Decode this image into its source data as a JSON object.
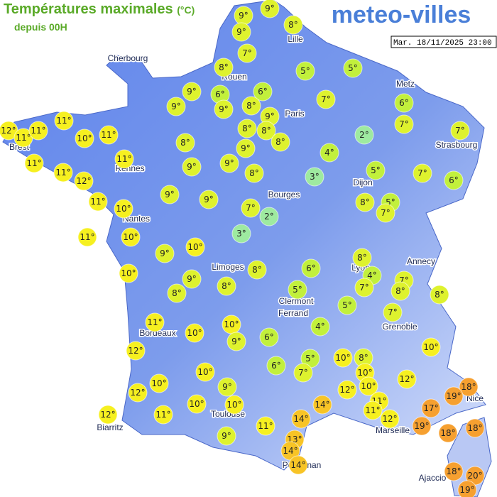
{
  "header": {
    "title": "Températures maximales",
    "unit": "(°C)",
    "subtitle": "depuis 00H",
    "logo": "meteo-villes",
    "date": "Mar. 18/11/2025 23:00"
  },
  "cities": [
    "Cherbourg",
    "Lille",
    "Rouen",
    "Paris",
    "Metz",
    "Strasbourg",
    "Brest",
    "Rennes",
    "Dijon",
    "Bourges",
    "Nantes",
    "Limoges",
    "Annecy",
    "Lyon",
    "Clermont",
    "Ferrand",
    "Grenoble",
    "Bordeaux",
    "Toulouse",
    "Biarritz",
    "Marseille",
    "Nice",
    "Perpignan",
    "Ajaccio"
  ],
  "markers": [
    {
      "value": 9,
      "label": "9°"
    },
    {
      "value": 9,
      "label": "9°"
    },
    {
      "value": 9,
      "label": "9°"
    },
    {
      "value": 8,
      "label": "8°"
    },
    {
      "value": 7,
      "label": "7°"
    },
    {
      "value": 8,
      "label": "8°"
    },
    {
      "value": 5,
      "label": "5°"
    },
    {
      "value": 5,
      "label": "5°"
    },
    {
      "value": 6,
      "label": "6°"
    },
    {
      "value": 9,
      "label": "9°"
    },
    {
      "value": 6,
      "label": "6°"
    },
    {
      "value": 9,
      "label": "9°"
    },
    {
      "value": 9,
      "label": "9°"
    },
    {
      "value": 8,
      "label": "8°"
    },
    {
      "value": 9,
      "label": "9°"
    },
    {
      "value": 7,
      "label": "7°"
    },
    {
      "value": 6,
      "label": "6°"
    },
    {
      "value": 7,
      "label": "7°"
    },
    {
      "value": 7,
      "label": "7°"
    },
    {
      "value": 2,
      "label": "2°"
    },
    {
      "value": 8,
      "label": "8°"
    },
    {
      "value": 8,
      "label": "8°"
    },
    {
      "value": 8,
      "label": "8°"
    },
    {
      "value": 9,
      "label": "9°"
    },
    {
      "value": 8,
      "label": "8°"
    },
    {
      "value": 11,
      "label": "11°"
    },
    {
      "value": 12,
      "label": "12°"
    },
    {
      "value": 11,
      "label": "11°"
    },
    {
      "value": 11,
      "label": "11°"
    },
    {
      "value": 10,
      "label": "10°"
    },
    {
      "value": 11,
      "label": "11°"
    },
    {
      "value": 11,
      "label": "11°"
    },
    {
      "value": 11,
      "label": "11°"
    },
    {
      "value": 11,
      "label": "11°"
    },
    {
      "value": 12,
      "label": "12°"
    },
    {
      "value": 9,
      "label": "9°"
    },
    {
      "value": 9,
      "label": "9°"
    },
    {
      "value": 8,
      "label": "8°"
    },
    {
      "value": 4,
      "label": "4°"
    },
    {
      "value": 3,
      "label": "3°"
    },
    {
      "value": 5,
      "label": "5°"
    },
    {
      "value": 7,
      "label": "7°"
    },
    {
      "value": 6,
      "label": "6°"
    },
    {
      "value": 9,
      "label": "9°"
    },
    {
      "value": 9,
      "label": "9°"
    },
    {
      "value": 11,
      "label": "11°"
    },
    {
      "value": 10,
      "label": "10°"
    },
    {
      "value": 7,
      "label": "7°"
    },
    {
      "value": 2,
      "label": "2°"
    },
    {
      "value": 8,
      "label": "8°"
    },
    {
      "value": 5,
      "label": "5°"
    },
    {
      "value": 7,
      "label": "7°"
    },
    {
      "value": 11,
      "label": "11°"
    },
    {
      "value": 10,
      "label": "10°"
    },
    {
      "value": 3,
      "label": "3°"
    },
    {
      "value": 9,
      "label": "9°"
    },
    {
      "value": 10,
      "label": "10°"
    },
    {
      "value": 10,
      "label": "10°"
    },
    {
      "value": 8,
      "label": "8°"
    },
    {
      "value": 4,
      "label": "4°"
    },
    {
      "value": 6,
      "label": "6°"
    },
    {
      "value": 8,
      "label": "8°"
    },
    {
      "value": 9,
      "label": "9°"
    },
    {
      "value": 8,
      "label": "8°"
    },
    {
      "value": 8,
      "label": "8°"
    },
    {
      "value": 7,
      "label": "7°"
    },
    {
      "value": 8,
      "label": "8°"
    },
    {
      "value": 7,
      "label": "7°"
    },
    {
      "value": 8,
      "label": "8°"
    },
    {
      "value": 5,
      "label": "5°"
    },
    {
      "value": 5,
      "label": "5°"
    },
    {
      "value": 7,
      "label": "7°"
    },
    {
      "value": 11,
      "label": "11°"
    },
    {
      "value": 10,
      "label": "10°"
    },
    {
      "value": 10,
      "label": "10°"
    },
    {
      "value": 9,
      "label": "9°"
    },
    {
      "value": 6,
      "label": "6°"
    },
    {
      "value": 4,
      "label": "4°"
    },
    {
      "value": 12,
      "label": "12°"
    },
    {
      "value": 10,
      "label": "10°"
    },
    {
      "value": 5,
      "label": "5°"
    },
    {
      "value": 7,
      "label": "7°"
    },
    {
      "value": 6,
      "label": "6°"
    },
    {
      "value": 10,
      "label": "10°"
    },
    {
      "value": 8,
      "label": "8°"
    },
    {
      "value": 10,
      "label": "10°"
    },
    {
      "value": 10,
      "label": "10°"
    },
    {
      "value": 10,
      "label": "10°"
    },
    {
      "value": 9,
      "label": "9°"
    },
    {
      "value": 12,
      "label": "12°"
    },
    {
      "value": 12,
      "label": "12°"
    },
    {
      "value": 12,
      "label": "12°"
    },
    {
      "value": 10,
      "label": "10°"
    },
    {
      "value": 14,
      "label": "14°"
    },
    {
      "value": 11,
      "label": "11°"
    },
    {
      "value": 11,
      "label": "11°"
    },
    {
      "value": 18,
      "label": "18°"
    },
    {
      "value": 19,
      "label": "19°"
    },
    {
      "value": 17,
      "label": "17°"
    },
    {
      "value": 10,
      "label": "10°"
    },
    {
      "value": 10,
      "label": "10°"
    },
    {
      "value": 11,
      "label": "11°"
    },
    {
      "value": 12,
      "label": "12°"
    },
    {
      "value": 11,
      "label": "11°"
    },
    {
      "value": 14,
      "label": "14°"
    },
    {
      "value": 12,
      "label": "12°"
    },
    {
      "value": 19,
      "label": "19°"
    },
    {
      "value": 18,
      "label": "18°"
    },
    {
      "value": 18,
      "label": "18°"
    },
    {
      "value": 9,
      "label": "9°"
    },
    {
      "value": 13,
      "label": "13°"
    },
    {
      "value": 14,
      "label": "14°"
    },
    {
      "value": 14,
      "label": "14°"
    },
    {
      "value": 18,
      "label": "18°"
    },
    {
      "value": 20,
      "label": "20°"
    },
    {
      "value": 19,
      "label": "19°"
    }
  ]
}
